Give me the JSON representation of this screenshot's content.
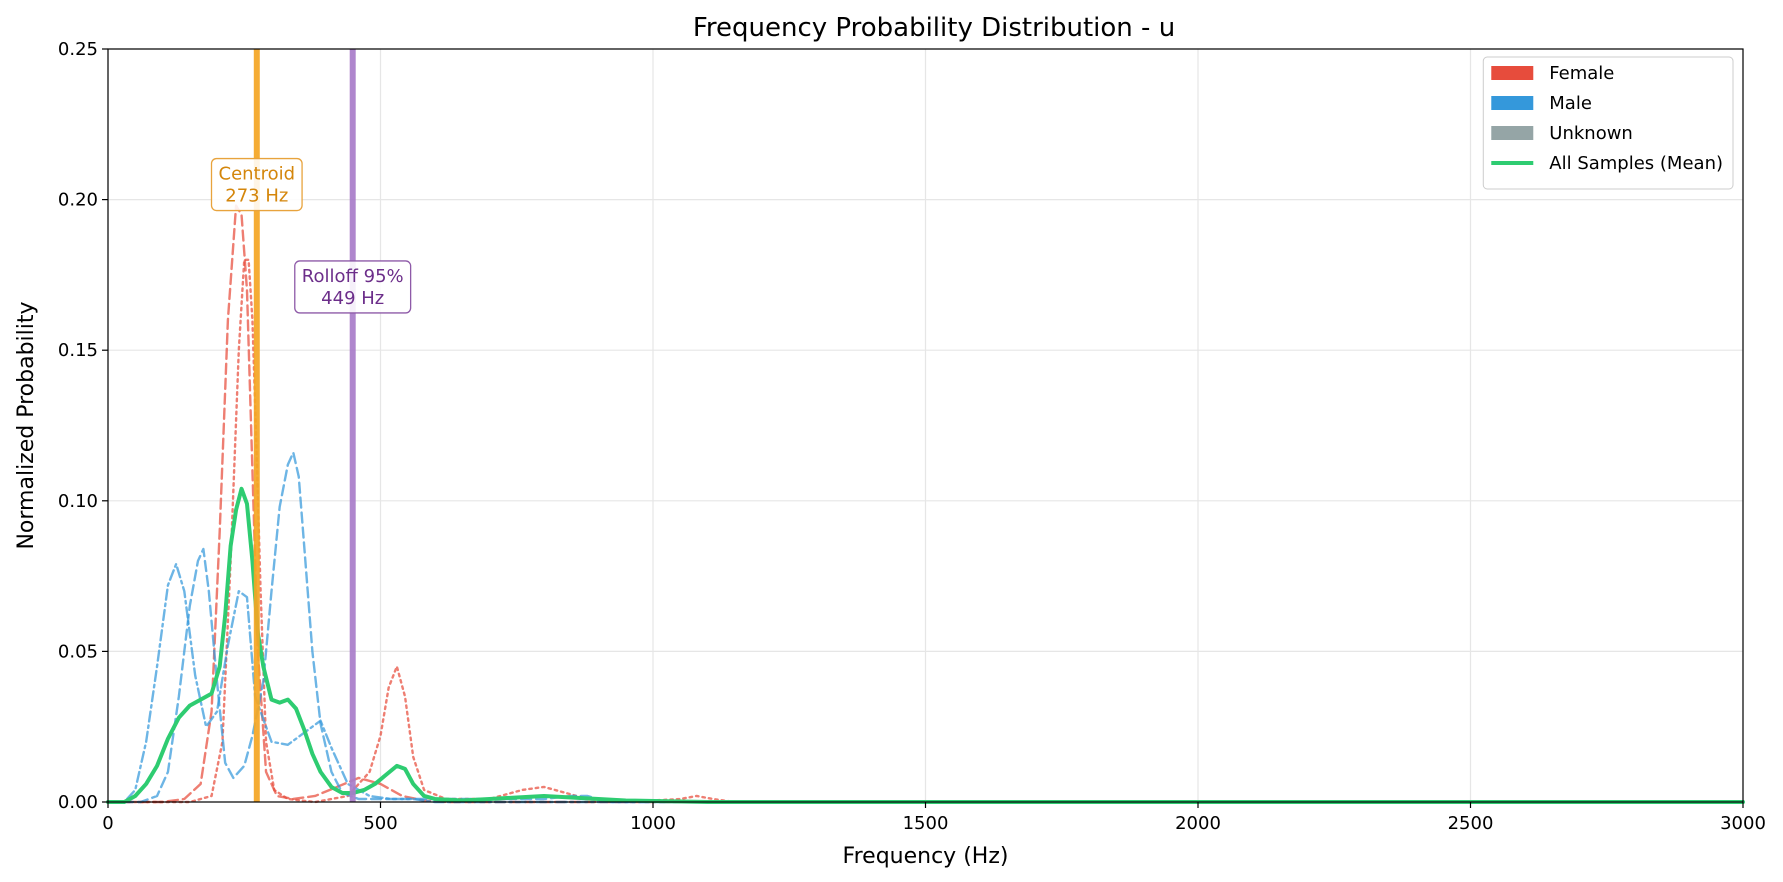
{
  "chart_data": {
    "type": "line",
    "title": "Frequency Probability Distribution - u",
    "xlabel": "Frequency (Hz)",
    "ylabel": "Normalized Probability",
    "xlim": [
      0,
      3000
    ],
    "ylim": [
      0,
      0.25
    ],
    "x_ticks": [
      0,
      500,
      1000,
      1500,
      2000,
      2500,
      3000
    ],
    "x_tick_labels": [
      "0",
      "500",
      "1000",
      "1500",
      "2000",
      "2500",
      "3000"
    ],
    "y_ticks": [
      0,
      0.05,
      0.1,
      0.15,
      0.2,
      0.25
    ],
    "y_tick_labels": [
      "0.00",
      "0.05",
      "0.10",
      "0.15",
      "0.20",
      "0.25"
    ],
    "grid": true,
    "legend": {
      "placement": "top-right",
      "entries": [
        {
          "label": "Female",
          "kind": "patch",
          "color": "#e74c3c"
        },
        {
          "label": "Male",
          "kind": "patch",
          "color": "#3498db"
        },
        {
          "label": "Unknown",
          "kind": "patch",
          "color": "#95a5a6"
        },
        {
          "label": "All Samples (Mean)",
          "kind": "line",
          "color": "#2ecc71"
        }
      ]
    },
    "vertical_lines": [
      {
        "x": 273,
        "color": "#f5a623",
        "label_lines": [
          "Centroid",
          "273 Hz"
        ],
        "label_y": 0.205,
        "text_color": "#d4860b",
        "border_color": "#e8a33d"
      },
      {
        "x": 449,
        "color": "#a97cc9",
        "label_lines": [
          "Rolloff 95%",
          "449 Hz"
        ],
        "label_y": 0.171,
        "text_color": "#6c2e8a",
        "border_color": "#8e5aa8"
      }
    ],
    "series": [
      {
        "group": "Female",
        "style": "dashed",
        "color": "#e74c3c",
        "x": [
          0,
          100,
          140,
          170,
          190,
          205,
          220,
          235,
          245,
          255,
          265,
          275,
          290,
          310,
          340,
          380,
          420,
          460,
          500,
          540,
          580,
          620,
          3000
        ],
        "y": [
          0,
          0,
          0.001,
          0.006,
          0.03,
          0.09,
          0.16,
          0.198,
          0.195,
          0.17,
          0.11,
          0.05,
          0.01,
          0.002,
          0.001,
          0.002,
          0.005,
          0.008,
          0.006,
          0.002,
          0.0005,
          0,
          0
        ]
      },
      {
        "group": "Female",
        "style": "dotted",
        "color": "#e74c3c",
        "x": [
          0,
          150,
          190,
          210,
          225,
          240,
          250,
          258,
          265,
          272,
          280,
          290,
          305,
          330,
          380,
          440,
          480,
          500,
          515,
          530,
          545,
          560,
          580,
          620,
          700,
          760,
          800,
          840,
          880,
          950,
          1050,
          1080,
          1110,
          1150,
          3000
        ],
        "y": [
          0,
          0,
          0.002,
          0.02,
          0.08,
          0.15,
          0.18,
          0.18,
          0.16,
          0.12,
          0.07,
          0.02,
          0.004,
          0.001,
          0,
          0.002,
          0.01,
          0.022,
          0.038,
          0.045,
          0.035,
          0.015,
          0.004,
          0.001,
          0.001,
          0.004,
          0.005,
          0.003,
          0.001,
          0,
          0.001,
          0.002,
          0.001,
          0,
          0
        ]
      },
      {
        "group": "Male",
        "style": "dashdot",
        "color": "#3498db",
        "x": [
          0,
          30,
          50,
          70,
          90,
          110,
          125,
          140,
          160,
          180,
          200,
          220,
          240,
          255,
          270,
          300,
          330,
          360,
          390,
          410,
          440,
          480,
          520,
          560,
          600,
          3000
        ],
        "y": [
          0,
          0,
          0.004,
          0.02,
          0.045,
          0.072,
          0.079,
          0.07,
          0.042,
          0.025,
          0.03,
          0.052,
          0.07,
          0.068,
          0.035,
          0.02,
          0.019,
          0.023,
          0.027,
          0.018,
          0.006,
          0.002,
          0.001,
          0.001,
          0,
          0
        ]
      },
      {
        "group": "Male",
        "style": "dashed",
        "color": "#3498db",
        "x": [
          0,
          60,
          90,
          110,
          130,
          150,
          165,
          175,
          185,
          200,
          215,
          230,
          250,
          265,
          285,
          300,
          315,
          330,
          340,
          350,
          360,
          375,
          390,
          410,
          430,
          460,
          500,
          560,
          640,
          720,
          800,
          850,
          880,
          900,
          920,
          3000
        ],
        "y": [
          0,
          0,
          0.002,
          0.01,
          0.035,
          0.065,
          0.08,
          0.084,
          0.07,
          0.04,
          0.013,
          0.008,
          0.012,
          0.022,
          0.04,
          0.07,
          0.098,
          0.112,
          0.116,
          0.108,
          0.085,
          0.05,
          0.026,
          0.01,
          0.003,
          0.001,
          0.001,
          0.001,
          0.001,
          0.001,
          0.001,
          0.002,
          0.002,
          0.001,
          0,
          0
        ]
      },
      {
        "group": "All Samples (Mean)",
        "style": "solid",
        "color": "#2ecc71",
        "x": [
          0,
          30,
          50,
          70,
          90,
          110,
          130,
          150,
          170,
          190,
          205,
          215,
          225,
          235,
          245,
          255,
          265,
          275,
          285,
          300,
          315,
          330,
          345,
          360,
          375,
          390,
          410,
          430,
          450,
          470,
          490,
          510,
          530,
          545,
          560,
          580,
          600,
          650,
          700,
          750,
          800,
          850,
          900,
          950,
          1100,
          3000
        ],
        "y": [
          0,
          0,
          0.002,
          0.006,
          0.012,
          0.021,
          0.028,
          0.032,
          0.034,
          0.036,
          0.045,
          0.062,
          0.085,
          0.097,
          0.104,
          0.099,
          0.08,
          0.056,
          0.045,
          0.034,
          0.033,
          0.034,
          0.031,
          0.024,
          0.016,
          0.01,
          0.005,
          0.003,
          0.003,
          0.004,
          0.006,
          0.009,
          0.012,
          0.011,
          0.006,
          0.002,
          0.001,
          0.0005,
          0.001,
          0.0015,
          0.002,
          0.0015,
          0.001,
          0.0005,
          0,
          0
        ]
      }
    ]
  }
}
